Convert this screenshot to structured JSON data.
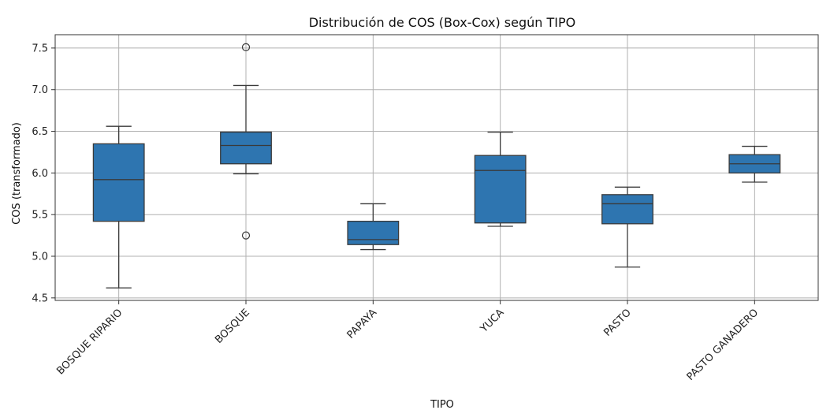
{
  "chart_data": {
    "type": "box",
    "title": "Distribución de COS (Box-Cox) según TIPO",
    "xlabel": "TIPO",
    "ylabel": "COS (transformado)",
    "ylim": [
      4.47,
      7.66
    ],
    "yticks": [
      "4.5",
      "5.0",
      "5.5",
      "6.0",
      "6.5",
      "7.0",
      "7.5"
    ],
    "grid": true,
    "box_color": "#2e75b0",
    "categories": [
      "BOSQUE RIPARIO",
      "BOSQUE",
      "PAPAYA",
      "YUCA",
      "PASTO",
      "PASTO GANADERO"
    ],
    "boxes": [
      {
        "category": "BOSQUE RIPARIO",
        "whisker_low": 4.62,
        "q1": 5.42,
        "median": 5.92,
        "q3": 6.35,
        "whisker_high": 6.56,
        "outliers": []
      },
      {
        "category": "BOSQUE",
        "whisker_low": 5.99,
        "q1": 6.11,
        "median": 6.33,
        "q3": 6.49,
        "whisker_high": 7.05,
        "outliers": [
          7.51,
          5.25
        ]
      },
      {
        "category": "PAPAYA",
        "whisker_low": 5.08,
        "q1": 5.14,
        "median": 5.2,
        "q3": 5.42,
        "whisker_high": 5.63,
        "outliers": []
      },
      {
        "category": "YUCA",
        "whisker_low": 5.36,
        "q1": 5.4,
        "median": 6.03,
        "q3": 6.21,
        "whisker_high": 6.49,
        "outliers": []
      },
      {
        "category": "PASTO",
        "whisker_low": 4.87,
        "q1": 5.39,
        "median": 5.63,
        "q3": 5.74,
        "whisker_high": 5.83,
        "outliers": []
      },
      {
        "category": "PASTO GANADERO",
        "whisker_low": 5.89,
        "q1": 6.0,
        "median": 6.11,
        "q3": 6.22,
        "whisker_high": 6.32,
        "outliers": []
      }
    ]
  }
}
